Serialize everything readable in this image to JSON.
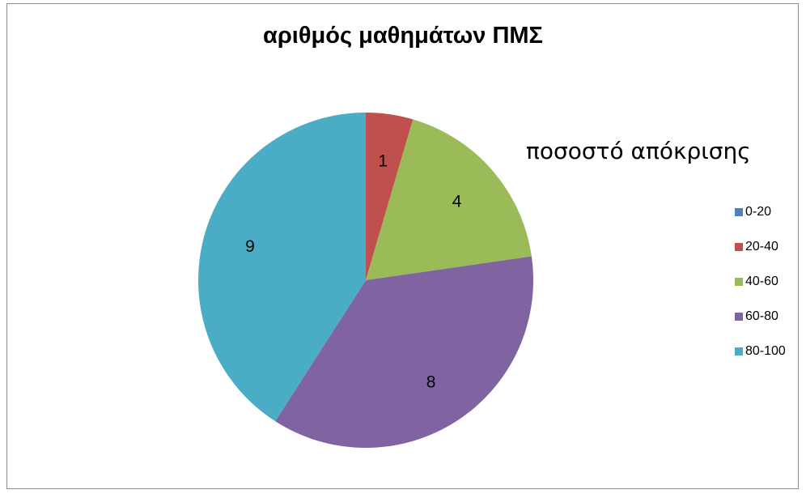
{
  "chart_data": {
    "type": "pie",
    "title": "αριθμός μαθημάτων ΠΜΣ",
    "legend_title": "ποσοστό απόκρισης",
    "legend_position": "right",
    "categories": [
      "0-20",
      "20-40",
      "40-60",
      "60-80",
      "80-100"
    ],
    "values": [
      0,
      1,
      4,
      8,
      9
    ],
    "data_labels": [
      "",
      "1",
      "4",
      "8",
      "9"
    ],
    "colors": [
      "#4F81BD",
      "#C0504D",
      "#9BBB59",
      "#8064A2",
      "#4BACC6"
    ]
  }
}
